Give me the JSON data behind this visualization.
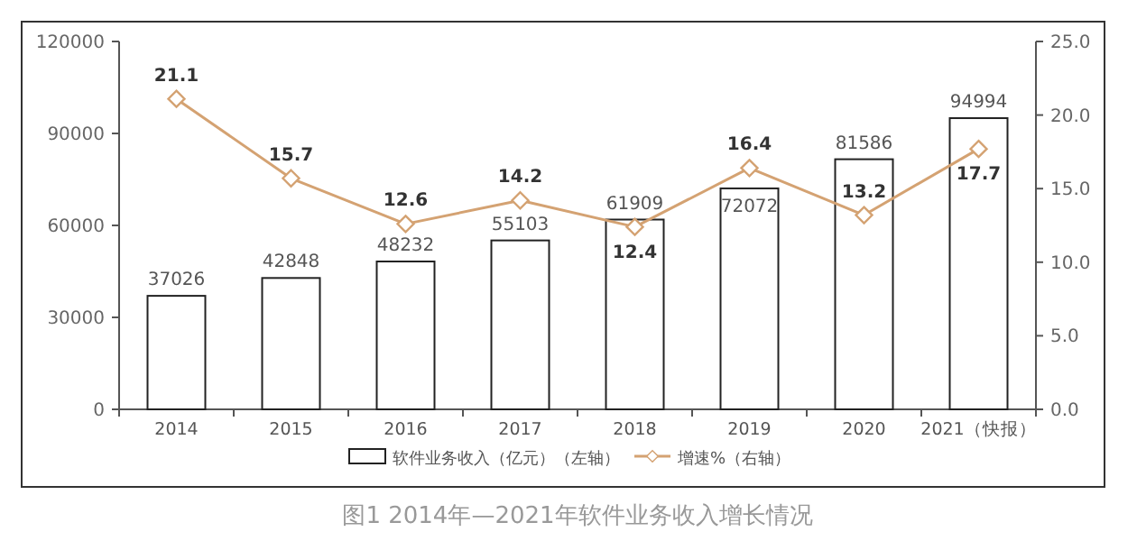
{
  "chart_data": {
    "type": "bar",
    "title": "图1 2014年—2021年软件业务收入增长情况",
    "categories": [
      "2014",
      "2015",
      "2016",
      "2017",
      "2018",
      "2019",
      "2020",
      "2021（快报）"
    ],
    "series": [
      {
        "name": "软件业务收入（亿元）（左轴）",
        "color": "#ffffff",
        "values": [
          37026,
          42848,
          48232,
          55103,
          61909,
          72072,
          81586,
          94994
        ]
      },
      {
        "name": "增速%（右轴）",
        "type": "line",
        "axis": "y2",
        "color": "#d4a272",
        "marker": "diamond",
        "values": [
          21.1,
          15.7,
          12.6,
          14.2,
          12.4,
          16.4,
          13.2,
          17.7
        ]
      }
    ],
    "ylim": [
      0,
      120000
    ],
    "yticks": [
      0,
      30000,
      60000,
      90000,
      120000
    ],
    "y2lim": [
      0,
      25
    ],
    "y2ticks": [
      {
        "value": 0,
        "label": "0.0"
      },
      {
        "value": 5,
        "label": "5.0"
      },
      {
        "value": 10,
        "label": "10.0"
      },
      {
        "value": 15,
        "label": "15.0"
      },
      {
        "value": 20,
        "label": "20.0"
      },
      {
        "value": 25,
        "label": "25.0"
      }
    ],
    "data_labels": true,
    "legend": "bottom",
    "grid": false
  }
}
